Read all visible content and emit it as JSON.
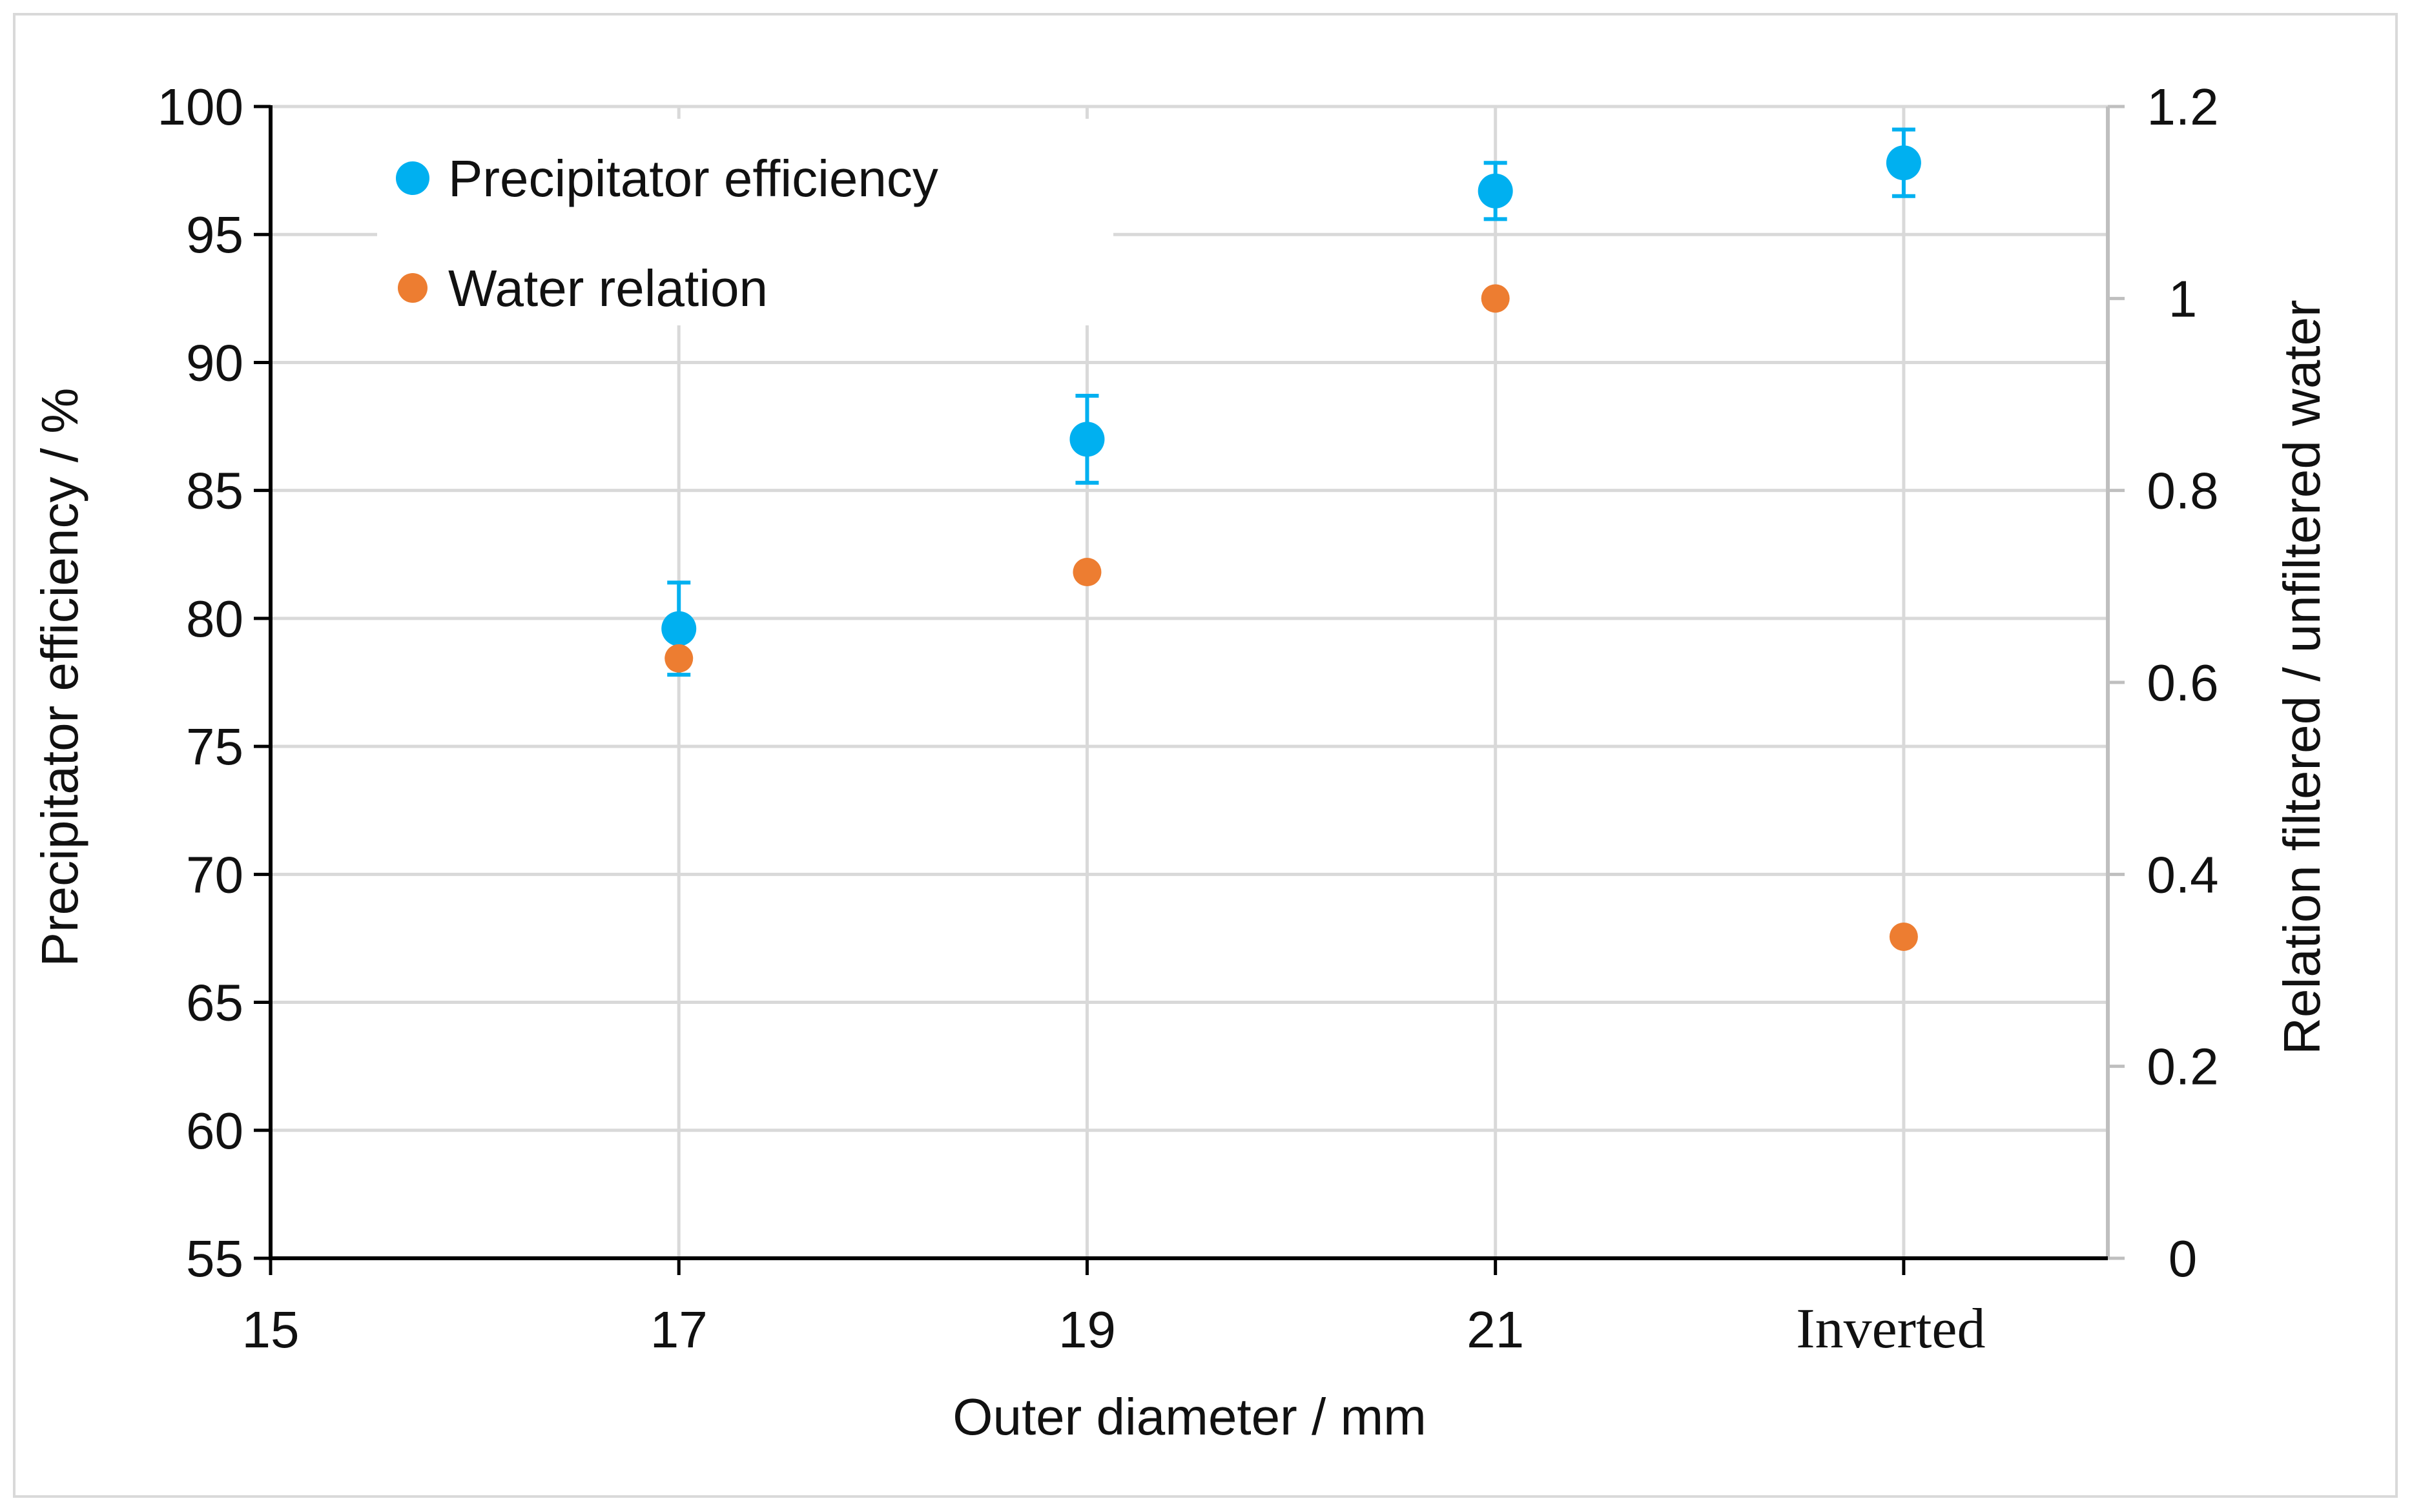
{
  "chart_data": {
    "type": "scatter",
    "title": "",
    "xlabel": "Outer diameter / mm",
    "ylabel": "Precipitator efficiency  / %",
    "y2label": "Relation  filtered / unfiltered water",
    "xlim": [
      15,
      24
    ],
    "ylim": [
      55,
      100
    ],
    "y2lim": [
      0,
      1.2
    ],
    "grid": true,
    "legend_position": "top-left",
    "x_ticks": [
      {
        "value": 15,
        "label": "15"
      },
      {
        "value": 17,
        "label": "17"
      },
      {
        "value": 19,
        "label": "19"
      },
      {
        "value": 21,
        "label": "21"
      },
      {
        "value": 23,
        "label": "Inverted"
      }
    ],
    "y_ticks": [
      {
        "value": 55,
        "label": "55"
      },
      {
        "value": 60,
        "label": "60"
      },
      {
        "value": 65,
        "label": "65"
      },
      {
        "value": 70,
        "label": "70"
      },
      {
        "value": 75,
        "label": "75"
      },
      {
        "value": 80,
        "label": "80"
      },
      {
        "value": 85,
        "label": "85"
      },
      {
        "value": 90,
        "label": "90"
      },
      {
        "value": 95,
        "label": "95"
      },
      {
        "value": 100,
        "label": "100"
      }
    ],
    "y2_ticks": [
      {
        "value": 0,
        "label": "0"
      },
      {
        "value": 0.2,
        "label": "0.2"
      },
      {
        "value": 0.4,
        "label": "0.4"
      },
      {
        "value": 0.6,
        "label": "0.6"
      },
      {
        "value": 0.8,
        "label": "0.8"
      },
      {
        "value": 1.0,
        "label": "1"
      },
      {
        "value": 1.2,
        "label": "1.2"
      }
    ],
    "series": [
      {
        "name": "Precipitator efficiency",
        "axis": "left",
        "color": "#00b0f0",
        "points": [
          {
            "x": 17,
            "label": "17",
            "y": 79.6,
            "err": 1.8
          },
          {
            "x": 19,
            "label": "19",
            "y": 87.0,
            "err": 1.7
          },
          {
            "x": 21,
            "label": "21",
            "y": 96.7,
            "err": 1.1
          },
          {
            "x": 23,
            "label": "Inverted",
            "y": 97.8,
            "err": 1.3
          }
        ]
      },
      {
        "name": "Water relation",
        "axis": "right",
        "color": "#ed7d31",
        "points": [
          {
            "x": 17,
            "label": "17",
            "y": 0.625
          },
          {
            "x": 19,
            "label": "19",
            "y": 0.715
          },
          {
            "x": 21,
            "label": "21",
            "y": 1.0
          },
          {
            "x": 23,
            "label": "Inverted",
            "y": 0.335
          }
        ]
      }
    ]
  },
  "colors": {
    "efficiency": "#00b0f0",
    "water": "#ed7d31",
    "grid": "#d9d9d9",
    "axis": "#000000"
  }
}
